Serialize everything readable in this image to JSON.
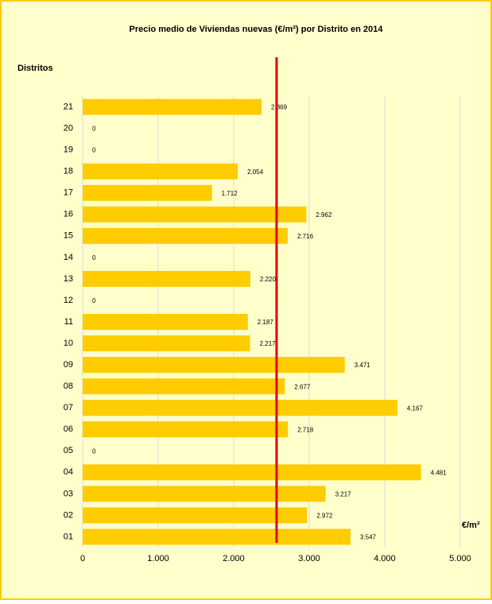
{
  "chart_data": {
    "type": "barh",
    "title": "Precio medio de Viviendas nuevas (€/m²) por Distrito en 2014",
    "y_label": "Distritos",
    "x_label": "€/m²",
    "categories": [
      "21",
      "20",
      "19",
      "18",
      "17",
      "16",
      "15",
      "14",
      "13",
      "12",
      "11",
      "10",
      "09",
      "08",
      "07",
      "06",
      "05",
      "04",
      "03",
      "02",
      "01"
    ],
    "values": [
      2369,
      0,
      0,
      2054,
      1712,
      2962,
      2716,
      0,
      2220,
      0,
      2187,
      2217,
      3471,
      2677,
      4167,
      2718,
      0,
      4481,
      3217,
      2972,
      3547
    ],
    "value_labels": [
      "2.369",
      "0",
      "0",
      "2.054",
      "1.712",
      "2.962",
      "2.716",
      "0",
      "2.220",
      "0",
      "2.187",
      "2.217",
      "3.471",
      "2.677",
      "4.167",
      "2.718",
      "0",
      "4.481",
      "3.217",
      "2.972",
      "3.547"
    ],
    "color": "#ffcc00",
    "reference_line": 2568,
    "reference_color": "#e00000",
    "xlim": [
      0,
      5000
    ],
    "xticks": [
      0,
      {
        "value": 1000,
        "label": "1.000"
      },
      {
        "value": 2000,
        "label": "2.000"
      },
      {
        "value": 3000,
        "label": "3.000"
      },
      {
        "value": 4000,
        "label": "4.000"
      },
      {
        "value": 5000,
        "label": "5.000"
      }
    ],
    "grid": true
  }
}
